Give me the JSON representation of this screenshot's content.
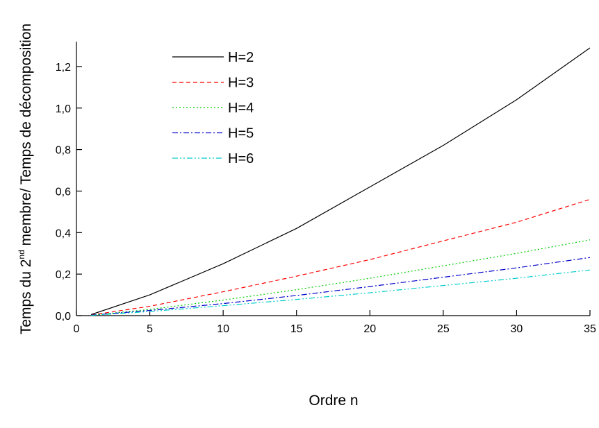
{
  "chart_data": {
    "type": "line",
    "xlabel": "Ordre n",
    "ylabel": {
      "main": "Temps du 2",
      "sup": "nd",
      "rest": " membre/ Temps de décomposition"
    },
    "x": [
      1,
      5,
      10,
      15,
      20,
      25,
      30,
      35
    ],
    "series": [
      {
        "name": "H=2",
        "color": "#000000",
        "dash": "none",
        "values": [
          0.005,
          0.1,
          0.25,
          0.42,
          0.62,
          0.82,
          1.04,
          1.29
        ]
      },
      {
        "name": "H=3",
        "color": "#ff0000",
        "dash": "6,4",
        "values": [
          0.003,
          0.045,
          0.115,
          0.19,
          0.27,
          0.36,
          0.45,
          0.56
        ]
      },
      {
        "name": "H=4",
        "color": "#00cc00",
        "dash": "2,3",
        "values": [
          0.002,
          0.03,
          0.075,
          0.125,
          0.18,
          0.24,
          0.3,
          0.365
        ]
      },
      {
        "name": "H=5",
        "color": "#0000cc",
        "dash": "8,3,2,3",
        "values": [
          0.002,
          0.025,
          0.058,
          0.097,
          0.14,
          0.185,
          0.23,
          0.28
        ]
      },
      {
        "name": "H=6",
        "color": "#00cccc",
        "dash": "8,3,2,3,2,3",
        "values": [
          0.001,
          0.02,
          0.048,
          0.078,
          0.11,
          0.145,
          0.18,
          0.22
        ]
      }
    ],
    "xlim": [
      0,
      35
    ],
    "xticks": [
      0,
      5,
      10,
      15,
      20,
      25,
      30,
      35
    ],
    "ylim": [
      0,
      1.32
    ],
    "yticks": [
      {
        "value": 0,
        "label": "0,0"
      },
      {
        "value": 0.2,
        "label": "0,2"
      },
      {
        "value": 0.4,
        "label": "0,4"
      },
      {
        "value": 0.6,
        "label": "0,6"
      },
      {
        "value": 0.8,
        "label": "0,8"
      },
      {
        "value": 1.0,
        "label": "1,0"
      },
      {
        "value": 1.2,
        "label": "1,2"
      }
    ],
    "grid": false,
    "legend": "upper left"
  }
}
